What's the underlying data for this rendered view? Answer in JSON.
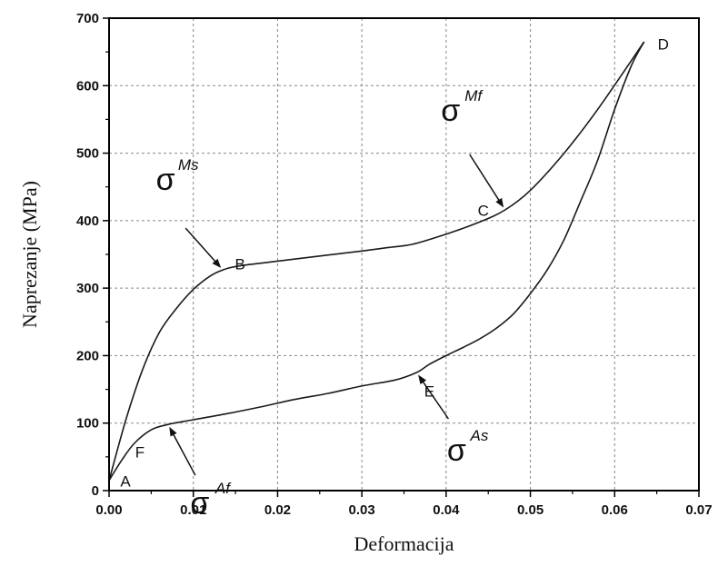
{
  "chart_data": {
    "type": "line",
    "title": "",
    "xlabel": "Deformacija",
    "ylabel": "Naprezanje  (MPa)",
    "xlim": [
      0.0,
      0.07
    ],
    "ylim": [
      0,
      700
    ],
    "x_ticks": [
      "0.00",
      "0.01",
      "0.02",
      "0.03",
      "0.04",
      "0.05",
      "0.06",
      "0.07"
    ],
    "y_ticks": [
      "0",
      "100",
      "200",
      "300",
      "400",
      "500",
      "600",
      "700"
    ],
    "grid": true,
    "series": [
      {
        "x": [
          0.0,
          0.002,
          0.004,
          0.006,
          0.008,
          0.01,
          0.012,
          0.0135,
          0.015,
          0.018,
          0.022,
          0.026,
          0.03,
          0.033,
          0.036,
          0.04,
          0.044,
          0.047,
          0.05,
          0.054,
          0.058,
          0.0635
        ],
        "values": [
          15,
          105,
          180,
          235,
          270,
          298,
          318,
          327,
          332,
          337,
          343,
          349,
          355,
          360,
          365,
          380,
          398,
          416,
          445,
          500,
          565,
          665
        ]
      },
      {
        "x": [
          0.0635,
          0.062,
          0.06,
          0.058,
          0.056,
          0.054,
          0.052,
          0.05,
          0.048,
          0.046,
          0.044,
          0.042,
          0.04,
          0.038,
          0.0365,
          0.034,
          0.03,
          0.026,
          0.022,
          0.018,
          0.014,
          0.01,
          0.007,
          0.005,
          0.003,
          0.0015,
          0.0
        ],
        "values": [
          665,
          630,
          565,
          490,
          430,
          372,
          327,
          292,
          262,
          241,
          225,
          212,
          200,
          187,
          175,
          164,
          155,
          144,
          135,
          124,
          114,
          105,
          98,
          90,
          70,
          45,
          15
        ]
      }
    ],
    "annotations": [
      {
        "label": "A",
        "x": 0.0,
        "y": 15
      },
      {
        "label": "B",
        "x": 0.0135,
        "y": 327
      },
      {
        "label": "C",
        "x": 0.047,
        "y": 416
      },
      {
        "label": "D",
        "x": 0.0635,
        "y": 665
      },
      {
        "label": "E",
        "x": 0.0365,
        "y": 175
      },
      {
        "label": "F",
        "x": 0.007,
        "y": 98
      }
    ],
    "sigma_labels": [
      {
        "symbol": "σ",
        "superscript": "Ms",
        "x": 0.0135,
        "y": 327
      },
      {
        "symbol": "σ",
        "superscript": "Mf",
        "x": 0.047,
        "y": 416
      },
      {
        "symbol": "σ",
        "superscript": "As",
        "x": 0.0365,
        "y": 175
      },
      {
        "symbol": "σ",
        "superscript": "Af",
        "x": 0.007,
        "y": 98
      }
    ],
    "colors": {
      "line": "#1a1a1a",
      "grid": "#888888",
      "axis": "#000000"
    }
  }
}
